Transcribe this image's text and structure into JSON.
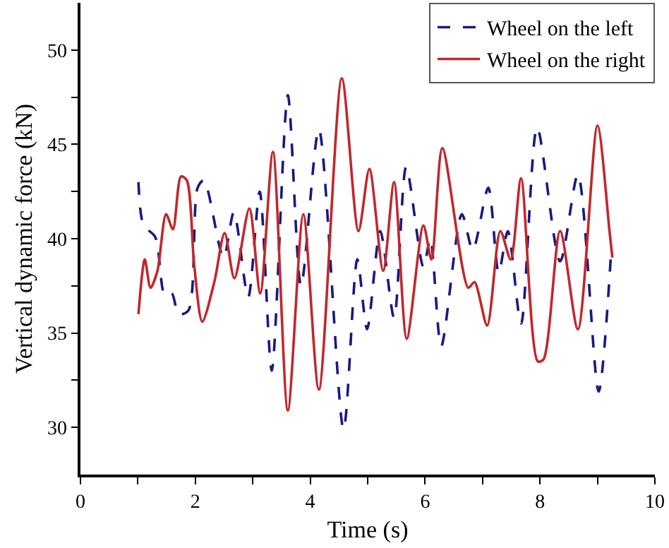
{
  "chart_data": {
    "type": "line",
    "xlabel": "Time (s)",
    "ylabel": "Vertical dynamic force (kN)",
    "xlim": [
      0,
      10
    ],
    "xticks": [
      0,
      {
        "value": 1,
        "label": null
      },
      2,
      {
        "value": 3,
        "label": null
      },
      4,
      {
        "value": 5,
        "label": null
      },
      6,
      {
        "value": 7,
        "label": null
      },
      8,
      {
        "value": 9,
        "label": null
      },
      10
    ],
    "ylim": [
      27.5,
      52.5
    ],
    "yticks": [
      30,
      {
        "value": 32.5,
        "label": null
      },
      35,
      {
        "value": 37.5,
        "label": null
      },
      40,
      {
        "value": 42.5,
        "label": null
      },
      45,
      {
        "value": 47.5,
        "label": null
      },
      50
    ],
    "grid": false,
    "legend": "top right",
    "marker": "none",
    "series": [
      {
        "name": "Wheel on the left",
        "color": "#1a1a80",
        "line_style": "dashed",
        "x": [
          1.01,
          1.1,
          1.3,
          1.47,
          1.59,
          1.71,
          1.88,
          2.04,
          2.15,
          2.49,
          2.67,
          2.92,
          3.12,
          3.33,
          3.61,
          3.84,
          4.15,
          4.58,
          4.82,
          4.99,
          5.22,
          5.46,
          5.67,
          5.97,
          6.09,
          6.28,
          6.64,
          6.83,
          7.1,
          7.28,
          7.44,
          7.67,
          7.95,
          8.35,
          8.66,
          9.02,
          9.23
        ],
        "values": [
          43.0,
          40.7,
          40.1,
          37.0,
          37.1,
          36.0,
          36.2,
          42.7,
          43.1,
          39.0,
          41.4,
          36.9,
          42.5,
          33.0,
          47.6,
          37.5,
          45.8,
          29.9,
          38.9,
          35.2,
          40.4,
          35.8,
          43.8,
          38.5,
          40.0,
          34.3,
          41.3,
          39.4,
          42.7,
          38.2,
          40.4,
          35.5,
          45.9,
          38.8,
          43.4,
          31.9,
          38.9
        ]
      },
      {
        "name": "Wheel on the right",
        "color": "#c0282d",
        "line_style": "solid",
        "x": [
          1.01,
          1.12,
          1.22,
          1.34,
          1.49,
          1.61,
          1.75,
          1.85,
          1.98,
          2.12,
          2.33,
          2.51,
          2.68,
          2.94,
          3.13,
          3.35,
          3.61,
          3.88,
          4.15,
          4.55,
          4.84,
          5.03,
          5.27,
          5.46,
          5.68,
          5.97,
          6.11,
          6.3,
          6.75,
          6.86,
          7.08,
          7.31,
          7.49,
          7.67,
          7.96,
          8.06,
          8.35,
          8.66,
          9.0,
          9.21,
          9.26
        ],
        "values": [
          36.0,
          38.9,
          37.4,
          38.3,
          41.3,
          40.5,
          43.3,
          43.1,
          38.6,
          35.6,
          37.7,
          40.3,
          37.9,
          41.6,
          37.1,
          44.6,
          30.9,
          41.3,
          32.0,
          48.5,
          40.4,
          43.7,
          38.3,
          43.0,
          34.7,
          40.7,
          38.9,
          44.8,
          37.4,
          37.7,
          35.4,
          40.4,
          38.9,
          43.2,
          33.5,
          33.6,
          40.4,
          35.2,
          46.0,
          40.4,
          39.0
        ]
      }
    ]
  }
}
